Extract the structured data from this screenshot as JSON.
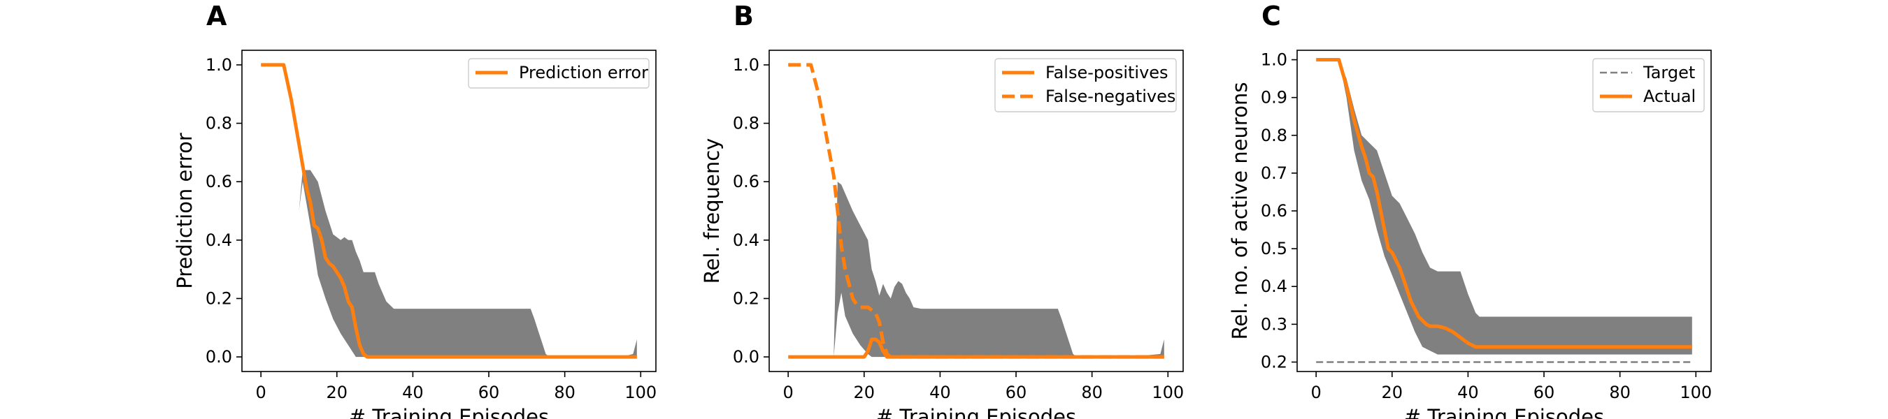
{
  "colors": {
    "actual": "#ff7f0e",
    "band": "#808080",
    "target": "#808080"
  },
  "chart_data": [
    {
      "panel": "A",
      "type": "line",
      "xlabel": "# Training Episodes",
      "ylabel": "Prediction error",
      "xlim": [
        -5,
        104
      ],
      "ylim": [
        -0.05,
        1.05
      ],
      "xticks": [
        0,
        20,
        40,
        60,
        80,
        100
      ],
      "yticks": [
        "0.0",
        "0.2",
        "0.4",
        "0.6",
        "0.8",
        "1.0"
      ],
      "legend_position": "top-right",
      "band": {
        "x": [
          10,
          11,
          13,
          15,
          17,
          19,
          21,
          22,
          23,
          24,
          25,
          26,
          27,
          28,
          29,
          30,
          31,
          33,
          35,
          37,
          40,
          45,
          50,
          55,
          60,
          65,
          70,
          71,
          72,
          73,
          74,
          75,
          76,
          78,
          80,
          85,
          90,
          95,
          98,
          99
        ],
        "upper": [
          0.5,
          0.64,
          0.64,
          0.6,
          0.5,
          0.42,
          0.4,
          0.41,
          0.4,
          0.4,
          0.36,
          0.33,
          0.29,
          0.29,
          0.29,
          0.29,
          0.25,
          0.19,
          0.165,
          0.165,
          0.165,
          0.165,
          0.165,
          0.165,
          0.165,
          0.165,
          0.165,
          0.165,
          0.13,
          0.09,
          0.05,
          0.01,
          0.0,
          0.0,
          0.0,
          0.0,
          0.0,
          0.0,
          0.01,
          0.06
        ],
        "lower": [
          0.5,
          0.6,
          0.45,
          0.28,
          0.2,
          0.13,
          0.08,
          0.06,
          0.04,
          0.02,
          0.0,
          0.0,
          0.0,
          0.0,
          0.0,
          0.0,
          0.0,
          0.0,
          0.0,
          0.0,
          0.0,
          0.0,
          0.0,
          0.0,
          0.0,
          0.0,
          0.0,
          0.0,
          0.0,
          0.0,
          0.0,
          0.0,
          0.0,
          0.0,
          0.0,
          0.0,
          0.0,
          0.0,
          0.0,
          0.0
        ]
      },
      "series": [
        {
          "name": "Prediction error",
          "style": "solid",
          "x": [
            0,
            6,
            8,
            10,
            12,
            13,
            14,
            15,
            16,
            17,
            18,
            19,
            20,
            21,
            22,
            23,
            24,
            25,
            26,
            27,
            28,
            29,
            30,
            40,
            60,
            80,
            99
          ],
          "y": [
            1.0,
            1.0,
            0.88,
            0.73,
            0.58,
            0.53,
            0.45,
            0.44,
            0.4,
            0.34,
            0.32,
            0.31,
            0.29,
            0.27,
            0.24,
            0.19,
            0.17,
            0.1,
            0.04,
            0.01,
            0.0,
            0.0,
            0.0,
            0.0,
            0.0,
            0.0,
            0.0
          ]
        }
      ]
    },
    {
      "panel": "B",
      "type": "line",
      "xlabel": "# Training Episodes",
      "ylabel": "Rel. frequency",
      "xlim": [
        -5,
        104
      ],
      "ylim": [
        -0.05,
        1.05
      ],
      "xticks": [
        0,
        20,
        40,
        60,
        80,
        100
      ],
      "yticks": [
        "0.0",
        "0.2",
        "0.4",
        "0.6",
        "0.8",
        "1.0"
      ],
      "legend_position": "top-right",
      "band": {
        "x": [
          12,
          13,
          14,
          15,
          17,
          19,
          21,
          22,
          23,
          24,
          25,
          26,
          27,
          28,
          29,
          30,
          31,
          32,
          33,
          35,
          40,
          50,
          60,
          70,
          71,
          72,
          73,
          74,
          75,
          76,
          78,
          80,
          90,
          98,
          99
        ],
        "upper": [
          0.0,
          0.6,
          0.59,
          0.56,
          0.5,
          0.45,
          0.4,
          0.3,
          0.26,
          0.21,
          0.25,
          0.22,
          0.2,
          0.24,
          0.26,
          0.25,
          0.22,
          0.2,
          0.17,
          0.165,
          0.165,
          0.165,
          0.165,
          0.165,
          0.165,
          0.13,
          0.09,
          0.05,
          0.01,
          0.0,
          0.0,
          0.0,
          0.0,
          0.01,
          0.06
        ],
        "lower": [
          0.0,
          0.15,
          0.22,
          0.14,
          0.08,
          0.04,
          0.01,
          0.0,
          0.0,
          0.0,
          0.0,
          0.0,
          0.0,
          0.0,
          0.0,
          0.0,
          0.0,
          0.0,
          0.0,
          0.0,
          0.0,
          0.0,
          0.0,
          0.0,
          0.0,
          0.0,
          0.0,
          0.0,
          0.0,
          0.0,
          0.0,
          0.0,
          0.0,
          0.0,
          0.0
        ]
      },
      "series": [
        {
          "name": "False-positives",
          "style": "solid",
          "x": [
            0,
            10,
            20,
            21,
            22,
            23,
            24,
            25,
            26,
            27,
            30,
            50,
            70,
            99
          ],
          "y": [
            0.0,
            0.0,
            0.0,
            0.02,
            0.06,
            0.06,
            0.05,
            0.02,
            0.0,
            0.0,
            0.0,
            0.0,
            0.0,
            0.0
          ]
        },
        {
          "name": "False-negatives",
          "style": "dashed",
          "x": [
            0,
            6,
            8,
            10,
            12,
            13,
            14,
            15,
            16,
            17,
            18,
            19,
            20,
            21,
            22,
            23,
            24,
            25,
            26,
            27,
            30,
            50,
            99
          ],
          "y": [
            1.0,
            1.0,
            0.9,
            0.76,
            0.62,
            0.5,
            0.38,
            0.3,
            0.25,
            0.2,
            0.18,
            0.17,
            0.17,
            0.17,
            0.16,
            0.15,
            0.12,
            0.05,
            0.01,
            0.0,
            0.0,
            0.0,
            0.0
          ]
        }
      ]
    },
    {
      "panel": "C",
      "type": "line",
      "xlabel": "# Training Episodes",
      "ylabel": "Rel. no. of active neurons",
      "xlim": [
        -5,
        104
      ],
      "ylim": [
        0.175,
        1.025
      ],
      "xticks": [
        0,
        20,
        40,
        60,
        80,
        100
      ],
      "yticks": [
        "0.2",
        "0.3",
        "0.4",
        "0.5",
        "0.6",
        "0.7",
        "0.8",
        "0.9",
        "1.0"
      ],
      "legend_position": "top-right",
      "band": {
        "x": [
          6,
          8,
          10,
          12,
          14,
          16,
          18,
          20,
          22,
          24,
          26,
          28,
          30,
          32,
          35,
          38,
          40,
          42,
          43,
          45,
          50,
          60,
          70,
          80,
          90,
          99
        ],
        "upper": [
          1.0,
          0.95,
          0.87,
          0.8,
          0.78,
          0.76,
          0.7,
          0.64,
          0.62,
          0.58,
          0.54,
          0.49,
          0.45,
          0.44,
          0.44,
          0.44,
          0.38,
          0.33,
          0.32,
          0.32,
          0.32,
          0.32,
          0.32,
          0.32,
          0.32,
          0.32
        ],
        "lower": [
          1.0,
          0.9,
          0.76,
          0.68,
          0.63,
          0.55,
          0.48,
          0.43,
          0.38,
          0.33,
          0.28,
          0.24,
          0.23,
          0.22,
          0.22,
          0.22,
          0.22,
          0.22,
          0.22,
          0.22,
          0.22,
          0.22,
          0.22,
          0.22,
          0.22,
          0.22
        ]
      },
      "series": [
        {
          "name": "Target",
          "style": "dashed-thin",
          "x": [
            0,
            99
          ],
          "y": [
            0.2,
            0.2
          ]
        },
        {
          "name": "Actual",
          "style": "solid",
          "x": [
            0,
            6,
            8,
            10,
            12,
            13,
            14,
            15,
            16,
            17,
            18,
            19,
            20,
            21,
            22,
            23,
            24,
            25,
            26,
            27,
            28,
            29,
            30,
            32,
            34,
            36,
            38,
            40,
            42,
            43,
            50,
            60,
            80,
            99
          ],
          "y": [
            1.0,
            1.0,
            0.93,
            0.84,
            0.77,
            0.74,
            0.7,
            0.69,
            0.65,
            0.6,
            0.55,
            0.5,
            0.49,
            0.47,
            0.45,
            0.42,
            0.39,
            0.36,
            0.34,
            0.32,
            0.31,
            0.3,
            0.295,
            0.295,
            0.29,
            0.28,
            0.265,
            0.25,
            0.24,
            0.24,
            0.24,
            0.24,
            0.24,
            0.24
          ]
        }
      ]
    }
  ]
}
